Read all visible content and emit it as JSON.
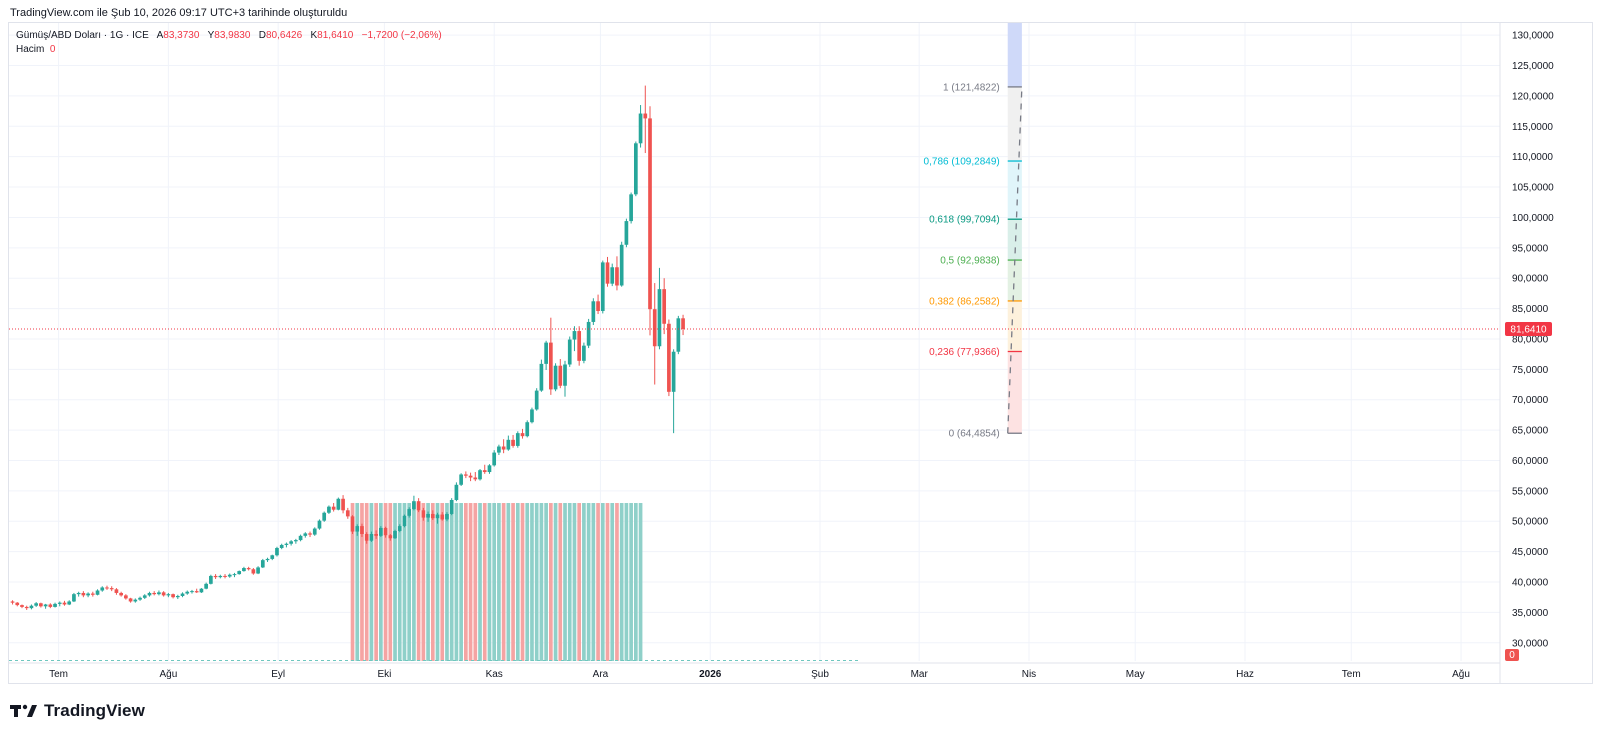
{
  "header": {
    "caption": "TradingView.com ile Şub 10, 2026 09:17 UTC+3 tarihinde oluşturuldu"
  },
  "legend": {
    "symbol": "Gümüş/ABD Doları · 1G · ICE",
    "open_label": "A",
    "open_value": "83,3730",
    "high_label": "Y",
    "high_value": "83,9830",
    "low_label": "D",
    "low_value": "80,6426",
    "close_label": "K",
    "close_value": "81,6410",
    "change": "−1,7200 (−2,06%)",
    "volume_label": "Hacim",
    "volume_value": "0"
  },
  "footer": {
    "brand": "TradingView"
  },
  "colors": {
    "up": "#26a69a",
    "down": "#ef5350",
    "volume_up": "#8fd0c9",
    "volume_down": "#f5a4a3",
    "price_line": "#f23645",
    "grid": "#f0f3fa"
  },
  "chart_data": {
    "type": "candlestick",
    "title": "Gümüş/ABD Doları · 1G · ICE",
    "y_axis": {
      "ylim": [
        27,
        132
      ],
      "tick_labels": [
        "30,0000",
        "35,0000",
        "40,0000",
        "45,0000",
        "50,0000",
        "55,0000",
        "60,0000",
        "65,0000",
        "70,0000",
        "75,0000",
        "80,0000",
        "85,0000",
        "90,0000",
        "95,0000",
        "100,0000",
        "105,0000",
        "110,0000",
        "115,0000",
        "120,0000",
        "125,0000",
        "130,0000"
      ],
      "tick_values": [
        30,
        35,
        40,
        45,
        50,
        55,
        60,
        65,
        70,
        75,
        80,
        85,
        90,
        95,
        100,
        105,
        110,
        115,
        120,
        125,
        130
      ]
    },
    "x_axis": {
      "tick_labels": [
        "Tem",
        "Ağu",
        "Eyl",
        "Eki",
        "Kas",
        "Ara",
        "2026",
        "Şub",
        "Mar",
        "Nis",
        "May",
        "Haz",
        "Tem",
        "Ağu"
      ],
      "tick_days": [
        0,
        31,
        62,
        92,
        123,
        153,
        184,
        215,
        243,
        274,
        304,
        335,
        365,
        396
      ],
      "bold_label": "2026",
      "xlim_days": [
        -14,
        407
      ]
    },
    "last_price": {
      "label": "81,6410",
      "value": 81.641
    },
    "volume_last": {
      "label": "0",
      "value": 0
    },
    "candles": {
      "start_day": -13,
      "step_days": 1.3333,
      "ohlc": [
        [
          36.8,
          37.0,
          36.3,
          36.6
        ],
        [
          36.6,
          36.7,
          36.0,
          36.2
        ],
        [
          36.2,
          36.3,
          35.7,
          35.9
        ],
        [
          35.9,
          36.1,
          35.4,
          35.7
        ],
        [
          35.7,
          36.3,
          35.5,
          36.1
        ],
        [
          36.1,
          36.7,
          35.9,
          36.5
        ],
        [
          36.5,
          36.6,
          35.8,
          36.0
        ],
        [
          36.0,
          36.4,
          35.6,
          36.3
        ],
        [
          36.3,
          36.5,
          35.7,
          35.9
        ],
        [
          35.9,
          36.6,
          35.8,
          36.4
        ],
        [
          36.4,
          36.8,
          36.0,
          36.6
        ],
        [
          36.6,
          36.9,
          36.1,
          36.3
        ],
        [
          36.3,
          37.0,
          36.2,
          36.8
        ],
        [
          36.8,
          38.2,
          36.7,
          38.0
        ],
        [
          38.0,
          38.4,
          37.6,
          38.2
        ],
        [
          38.2,
          38.5,
          37.5,
          37.8
        ],
        [
          37.8,
          38.3,
          37.5,
          38.1
        ],
        [
          38.1,
          38.4,
          37.6,
          37.9
        ],
        [
          37.9,
          38.8,
          37.8,
          38.6
        ],
        [
          38.6,
          39.3,
          38.4,
          39.1
        ],
        [
          39.1,
          39.4,
          38.7,
          39.0
        ],
        [
          39.0,
          39.3,
          38.5,
          38.8
        ],
        [
          38.8,
          39.0,
          37.9,
          38.2
        ],
        [
          38.2,
          38.4,
          37.6,
          37.8
        ],
        [
          37.8,
          38.0,
          37.1,
          37.3
        ],
        [
          37.3,
          37.4,
          36.6,
          36.8
        ],
        [
          36.8,
          37.3,
          36.6,
          37.1
        ],
        [
          37.1,
          37.6,
          36.9,
          37.4
        ],
        [
          37.4,
          38.0,
          37.2,
          37.8
        ],
        [
          37.8,
          38.4,
          37.6,
          38.2
        ],
        [
          38.2,
          38.5,
          37.8,
          38.0
        ],
        [
          38.0,
          38.6,
          37.8,
          38.3
        ],
        [
          38.3,
          38.5,
          37.6,
          37.8
        ],
        [
          37.8,
          38.2,
          37.5,
          38.0
        ],
        [
          38.0,
          38.1,
          37.3,
          37.5
        ],
        [
          37.5,
          37.9,
          37.2,
          37.7
        ],
        [
          37.7,
          38.3,
          37.5,
          38.1
        ],
        [
          38.1,
          38.6,
          37.9,
          38.4
        ],
        [
          38.4,
          38.7,
          38.1,
          38.5
        ],
        [
          38.5,
          38.9,
          38.2,
          38.3
        ],
        [
          38.3,
          39.0,
          38.2,
          38.9
        ],
        [
          38.9,
          39.9,
          38.8,
          39.7
        ],
        [
          39.7,
          41.2,
          39.6,
          41.0
        ],
        [
          41.0,
          41.3,
          40.5,
          40.8
        ],
        [
          40.8,
          41.2,
          40.6,
          41.0
        ],
        [
          41.0,
          41.3,
          40.6,
          40.9
        ],
        [
          40.9,
          41.4,
          40.7,
          41.2
        ],
        [
          41.2,
          41.5,
          40.8,
          41.3
        ],
        [
          41.3,
          41.9,
          41.2,
          41.8
        ],
        [
          41.8,
          42.5,
          41.7,
          42.3
        ],
        [
          42.3,
          42.5,
          41.9,
          42.1
        ],
        [
          42.1,
          42.3,
          41.2,
          41.4
        ],
        [
          41.4,
          42.6,
          41.3,
          42.4
        ],
        [
          42.4,
          43.8,
          42.3,
          43.6
        ],
        [
          43.6,
          44.0,
          43.3,
          43.8
        ],
        [
          43.8,
          44.5,
          43.6,
          44.4
        ],
        [
          44.4,
          45.8,
          44.2,
          45.6
        ],
        [
          45.6,
          46.3,
          45.4,
          46.1
        ],
        [
          46.1,
          46.5,
          45.7,
          46.3
        ],
        [
          46.3,
          46.9,
          46.0,
          46.7
        ],
        [
          46.7,
          47.1,
          46.3,
          46.9
        ],
        [
          46.9,
          47.8,
          46.7,
          47.6
        ],
        [
          47.6,
          48.2,
          47.3,
          48.0
        ],
        [
          48.0,
          48.3,
          47.4,
          47.8
        ],
        [
          47.8,
          49.0,
          47.6,
          48.8
        ],
        [
          48.8,
          50.3,
          48.6,
          50.1
        ],
        [
          50.1,
          51.6,
          49.9,
          51.4
        ],
        [
          51.4,
          52.6,
          51.2,
          52.4
        ],
        [
          52.4,
          53.0,
          51.6,
          51.9
        ],
        [
          51.9,
          53.9,
          51.8,
          53.7
        ],
        [
          53.7,
          54.3,
          51.3,
          51.8
        ],
        [
          51.8,
          52.2,
          50.4,
          50.8
        ],
        [
          50.8,
          51.0,
          47.9,
          48.3
        ],
        [
          48.3,
          49.5,
          47.6,
          49.2
        ],
        [
          49.2,
          49.6,
          47.4,
          47.9
        ],
        [
          47.9,
          48.2,
          46.3,
          46.8
        ],
        [
          46.8,
          48.3,
          46.6,
          47.9
        ],
        [
          47.9,
          48.5,
          47.1,
          47.6
        ],
        [
          47.6,
          49.2,
          47.4,
          48.9
        ],
        [
          48.9,
          49.1,
          47.3,
          47.7
        ],
        [
          47.7,
          47.9,
          46.8,
          47.2
        ],
        [
          47.2,
          48.6,
          47.1,
          48.4
        ],
        [
          48.4,
          49.5,
          48.2,
          49.2
        ],
        [
          49.2,
          51.1,
          49.0,
          50.9
        ],
        [
          50.9,
          52.3,
          50.6,
          52.0
        ],
        [
          52.0,
          54.2,
          51.8,
          53.3
        ],
        [
          53.3,
          53.8,
          51.5,
          51.8
        ],
        [
          51.8,
          52.2,
          50.1,
          50.6
        ],
        [
          50.6,
          51.6,
          49.9,
          51.2
        ],
        [
          51.2,
          51.8,
          50.2,
          50.5
        ],
        [
          50.5,
          51.4,
          49.6,
          51.1
        ],
        [
          51.1,
          51.5,
          50.1,
          50.3
        ],
        [
          50.3,
          51.5,
          50.0,
          51.2
        ],
        [
          51.2,
          53.8,
          51.0,
          53.5
        ],
        [
          53.5,
          56.4,
          53.3,
          56.0
        ],
        [
          56.0,
          57.9,
          55.8,
          57.7
        ],
        [
          57.7,
          58.2,
          57.1,
          57.5
        ],
        [
          57.5,
          58.0,
          56.6,
          57.2
        ],
        [
          57.2,
          58.1,
          56.6,
          56.9
        ],
        [
          56.9,
          58.6,
          56.7,
          58.4
        ],
        [
          58.4,
          59.3,
          57.8,
          58.1
        ],
        [
          58.1,
          59.4,
          57.8,
          59.2
        ],
        [
          59.2,
          61.7,
          59.0,
          61.3
        ],
        [
          61.3,
          62.6,
          60.9,
          62.3
        ],
        [
          62.3,
          63.5,
          61.2,
          61.8
        ],
        [
          61.8,
          64.1,
          61.6,
          63.4
        ],
        [
          63.4,
          64.2,
          62.1,
          62.4
        ],
        [
          62.4,
          64.8,
          62.1,
          64.5
        ],
        [
          64.5,
          65.2,
          63.6,
          64.0
        ],
        [
          64.0,
          66.6,
          63.8,
          66.3
        ],
        [
          66.3,
          68.7,
          66.1,
          68.4
        ],
        [
          68.4,
          71.9,
          68.2,
          71.5
        ],
        [
          71.5,
          76.6,
          71.3,
          75.9
        ],
        [
          75.9,
          79.7,
          74.9,
          79.4
        ],
        [
          79.4,
          83.5,
          70.8,
          71.7
        ],
        [
          71.7,
          76.0,
          71.4,
          75.6
        ],
        [
          75.6,
          76.7,
          71.9,
          72.3
        ],
        [
          72.3,
          76.4,
          70.5,
          75.8
        ],
        [
          75.8,
          80.4,
          75.4,
          79.9
        ],
        [
          79.9,
          82.1,
          78.0,
          81.3
        ],
        [
          81.3,
          82.1,
          75.6,
          76.4
        ],
        [
          76.4,
          79.4,
          76.0,
          78.9
        ],
        [
          78.9,
          83.3,
          78.5,
          82.8
        ],
        [
          82.8,
          86.7,
          82.3,
          86.2
        ],
        [
          86.2,
          87.3,
          84.1,
          84.6
        ],
        [
          84.6,
          92.9,
          84.2,
          92.6
        ],
        [
          92.6,
          93.5,
          88.6,
          89.1
        ],
        [
          89.1,
          92.4,
          88.7,
          91.8
        ],
        [
          91.8,
          93.6,
          88.0,
          88.8
        ],
        [
          88.8,
          96.0,
          88.6,
          95.5
        ],
        [
          95.5,
          99.8,
          95.1,
          99.4
        ],
        [
          99.4,
          104.1,
          99.0,
          103.8
        ],
        [
          103.8,
          112.5,
          103.5,
          112.2
        ],
        [
          112.2,
          118.5,
          111.5,
          117.1
        ],
        [
          117.1,
          121.7,
          110.6,
          116.3
        ],
        [
          116.3,
          118.3,
          80.6,
          84.9
        ],
        [
          84.9,
          89.2,
          72.5,
          78.8
        ],
        [
          78.8,
          91.7,
          78.3,
          88.2
        ],
        [
          88.2,
          90.0,
          80.8,
          82.5
        ],
        [
          82.5,
          83.2,
          70.6,
          71.3
        ],
        [
          71.3,
          78.3,
          64.5,
          77.9
        ],
        [
          77.9,
          83.8,
          77.5,
          83.4
        ],
        [
          83.4,
          83.98,
          80.64,
          81.641
        ]
      ]
    },
    "volume": {
      "note": "constant-height daily volume histogram bars",
      "level": 53,
      "from_candle": 72,
      "to_candle": 133
    },
    "fibonacci": {
      "type": "fib-retracement",
      "levels": [
        {
          "ratio": "1",
          "label": "1 (121,4822)",
          "value": 121.4822,
          "color": "#787b86"
        },
        {
          "ratio": "0,786",
          "label": "0,786 (109,2849)",
          "value": 109.2849,
          "color": "#00bcd4"
        },
        {
          "ratio": "0,618",
          "label": "0,618 (99,7094)",
          "value": 99.7094,
          "color": "#089981"
        },
        {
          "ratio": "0,5",
          "label": "0,5 (92,9838)",
          "value": 92.9838,
          "color": "#4caf50"
        },
        {
          "ratio": "0,382",
          "label": "0,382 (86,2582)",
          "value": 86.2582,
          "color": "#ff9800"
        },
        {
          "ratio": "0,236",
          "label": "0,236 (77,9366)",
          "value": 77.9366,
          "color": "#f23645"
        },
        {
          "ratio": "0",
          "label": "0 (64,4854)",
          "value": 64.4854,
          "color": "#787b86"
        }
      ],
      "fills": [
        "#f0f0f0",
        "#e0f5fa",
        "#d9efe9",
        "#e3f1e3",
        "#fdf1dc",
        "#fde2e2"
      ],
      "extension_fill": "#cfd9f9",
      "day_start": 268,
      "day_end": 272
    }
  }
}
